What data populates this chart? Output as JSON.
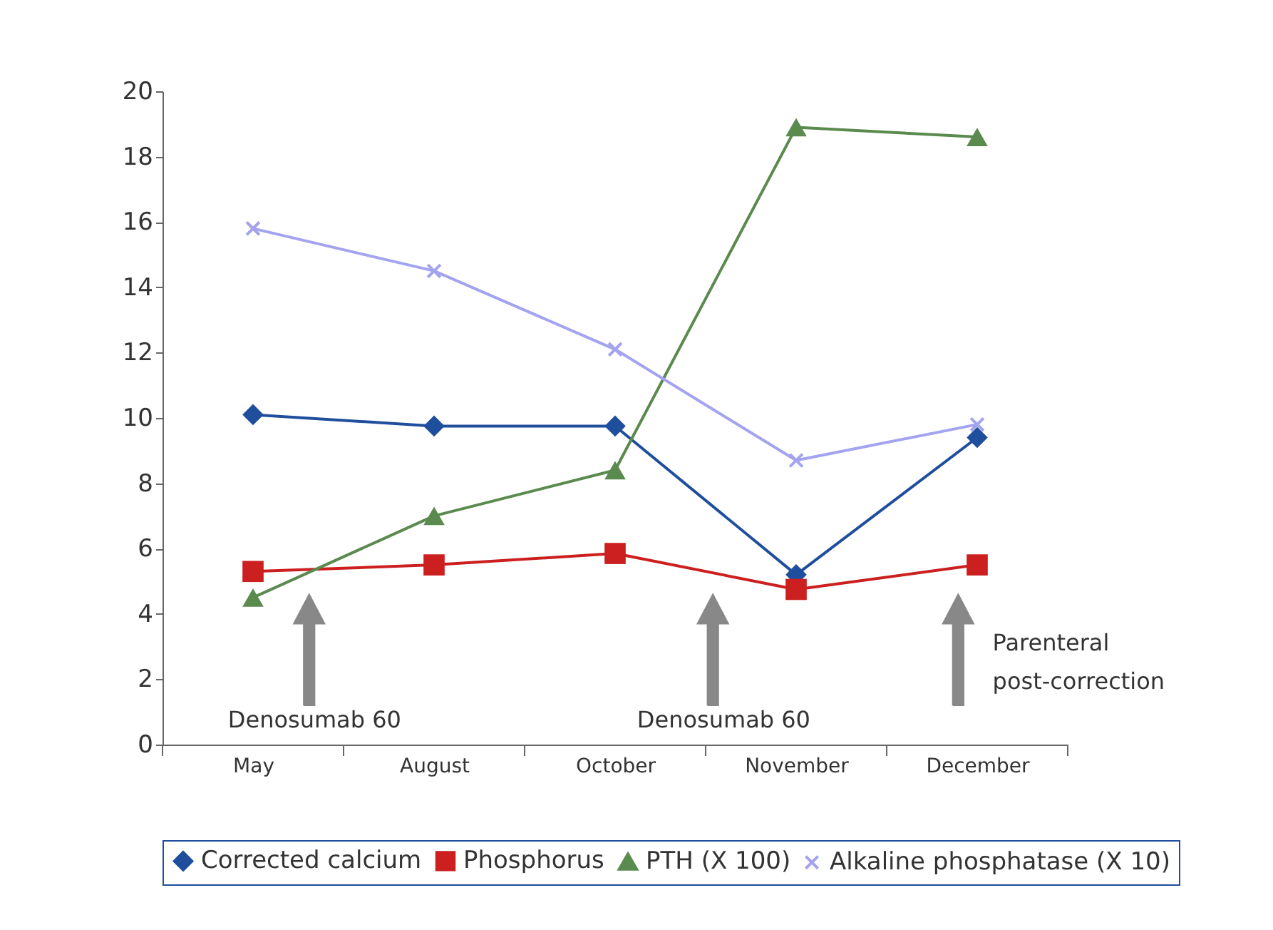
{
  "chart_data": {
    "type": "line",
    "categories": [
      "May",
      "August",
      "October",
      "November",
      "December"
    ],
    "series": [
      {
        "name": "Corrected calcium",
        "color": "#1f4e9c",
        "marker": "diamond",
        "values": [
          10.1,
          9.75,
          9.75,
          5.2,
          9.4
        ]
      },
      {
        "name": "Phosphorus",
        "color": "#cc1f1f",
        "marker": "square",
        "values": [
          5.3,
          5.5,
          5.85,
          4.75,
          5.5
        ]
      },
      {
        "name": "PTH (X 100)",
        "color": "#5a8a4e",
        "marker": "triangle",
        "values": [
          4.5,
          7.0,
          8.4,
          18.9,
          18.6
        ]
      },
      {
        "name": "Alkaline phosphatase (X 10)",
        "color": "#a3a3f0",
        "marker": "cross",
        "values": [
          15.8,
          14.5,
          12.1,
          8.7,
          9.8
        ]
      }
    ],
    "ylim": [
      0,
      20
    ],
    "yticks": [
      0,
      2,
      4,
      6,
      8,
      10,
      12,
      14,
      16,
      18,
      20
    ],
    "grid": false,
    "legend": "bottom",
    "line_style": "solid",
    "annotations": [
      "Denosumab 60",
      "Denosumab 60",
      "Parenteral post-correction"
    ]
  }
}
